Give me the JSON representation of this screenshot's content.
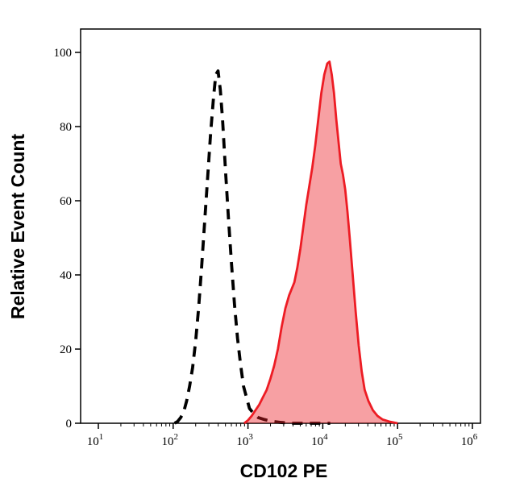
{
  "figure": {
    "background": "#ffffff"
  },
  "chart_data": {
    "type": "area",
    "title": "",
    "xlabel": "CD102 PE",
    "ylabel": "Relative Event Count",
    "x_scale": "log10",
    "x_tick_base": "10",
    "x_exponent_ticks": [
      1,
      2,
      3,
      4,
      5,
      6
    ],
    "xlim_log10": [
      1,
      6
    ],
    "y_ticks": [
      0,
      20,
      40,
      60,
      80,
      100
    ],
    "ylim": [
      0,
      100
    ],
    "grid": false,
    "legend": "none",
    "series": [
      {
        "name": "black-dashed-histogram",
        "style": "dashed",
        "line_color": "#000000",
        "fill": "none",
        "points_log10x_count": [
          [
            2.02,
            0
          ],
          [
            2.06,
            0.5
          ],
          [
            2.1,
            1.5
          ],
          [
            2.14,
            3
          ],
          [
            2.18,
            6
          ],
          [
            2.22,
            10
          ],
          [
            2.26,
            15
          ],
          [
            2.3,
            22
          ],
          [
            2.34,
            31
          ],
          [
            2.38,
            42
          ],
          [
            2.42,
            54
          ],
          [
            2.46,
            66
          ],
          [
            2.5,
            78
          ],
          [
            2.54,
            88
          ],
          [
            2.57,
            94
          ],
          [
            2.6,
            95
          ],
          [
            2.63,
            90
          ],
          [
            2.66,
            82
          ],
          [
            2.7,
            68
          ],
          [
            2.74,
            55
          ],
          [
            2.78,
            43
          ],
          [
            2.82,
            32
          ],
          [
            2.86,
            23
          ],
          [
            2.9,
            16
          ],
          [
            2.94,
            10
          ],
          [
            2.98,
            7
          ],
          [
            3.02,
            4
          ],
          [
            3.08,
            2.5
          ],
          [
            3.14,
            1.5
          ],
          [
            3.22,
            1
          ],
          [
            3.32,
            0.5
          ],
          [
            3.45,
            0.2
          ],
          [
            3.6,
            0
          ],
          [
            4.1,
            0
          ]
        ]
      },
      {
        "name": "red-filled-histogram",
        "style": "solid",
        "line_color": "#ed1c24",
        "fill": "rgba(237,28,36,0.42)",
        "points_log10x_count": [
          [
            2.95,
            0
          ],
          [
            3.0,
            0.8
          ],
          [
            3.05,
            2
          ],
          [
            3.1,
            3.5
          ],
          [
            3.15,
            5
          ],
          [
            3.2,
            7
          ],
          [
            3.25,
            9
          ],
          [
            3.3,
            12
          ],
          [
            3.35,
            15.5
          ],
          [
            3.4,
            20
          ],
          [
            3.45,
            26
          ],
          [
            3.5,
            31
          ],
          [
            3.55,
            34.5
          ],
          [
            3.58,
            36
          ],
          [
            3.62,
            38
          ],
          [
            3.66,
            42
          ],
          [
            3.7,
            47
          ],
          [
            3.74,
            53
          ],
          [
            3.78,
            59
          ],
          [
            3.82,
            64
          ],
          [
            3.86,
            69
          ],
          [
            3.9,
            75
          ],
          [
            3.94,
            82
          ],
          [
            3.98,
            89
          ],
          [
            4.02,
            94
          ],
          [
            4.06,
            97
          ],
          [
            4.09,
            97.5
          ],
          [
            4.12,
            94
          ],
          [
            4.15,
            89
          ],
          [
            4.18,
            82
          ],
          [
            4.21,
            76
          ],
          [
            4.24,
            70
          ],
          [
            4.27,
            67
          ],
          [
            4.3,
            63
          ],
          [
            4.33,
            57
          ],
          [
            4.36,
            50
          ],
          [
            4.4,
            40
          ],
          [
            4.44,
            30
          ],
          [
            4.48,
            21
          ],
          [
            4.52,
            14
          ],
          [
            4.56,
            9
          ],
          [
            4.61,
            6
          ],
          [
            4.67,
            3.5
          ],
          [
            4.73,
            2
          ],
          [
            4.8,
            1
          ],
          [
            4.9,
            0.4
          ],
          [
            5.0,
            0
          ]
        ]
      }
    ]
  }
}
